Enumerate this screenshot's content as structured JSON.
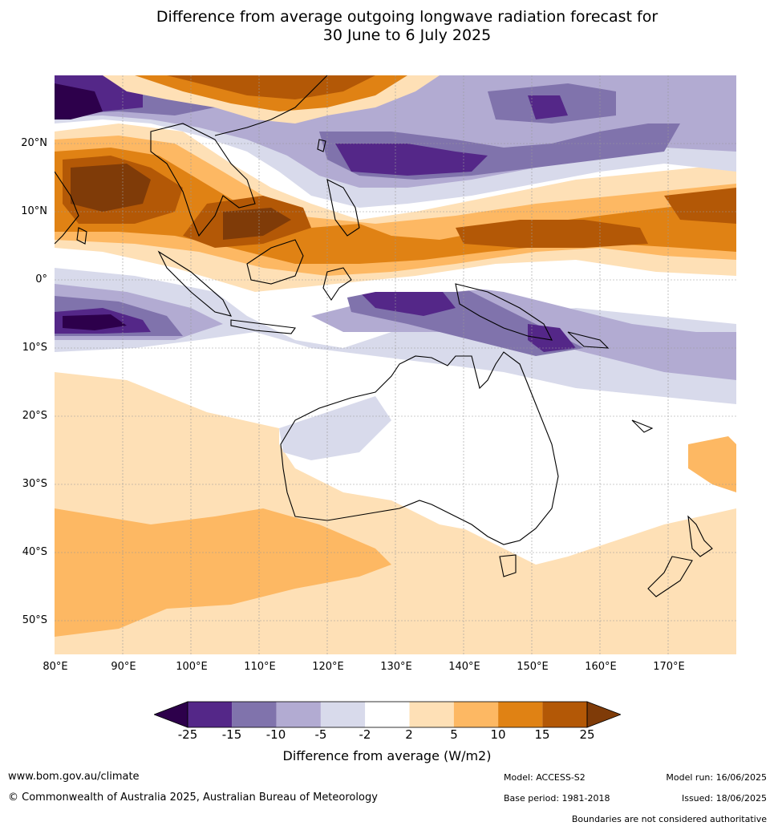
{
  "title": {
    "line1": "Difference from average outgoing longwave radiation forecast for",
    "line2": "30 June to 6 July 2025"
  },
  "lat_labels": [
    "20°N",
    "10°N",
    "0°",
    "10°S",
    "20°S",
    "30°S",
    "40°S",
    "50°S"
  ],
  "lon_labels": [
    "80°E",
    "90°E",
    "100°E",
    "110°E",
    "120°E",
    "130°E",
    "140°E",
    "150°E",
    "160°E",
    "170°E"
  ],
  "colorbar": {
    "title": "Difference from average (W/m2)",
    "ticks": [
      "-25",
      "-15",
      "-10",
      "-5",
      "-2",
      "2",
      "5",
      "10",
      "15",
      "25"
    ],
    "colors": {
      "lt_-25": "#2d004b",
      "-25_-15": "#542788",
      "-15_-10": "#8073ac",
      "-10_-5": "#b2abd2",
      "-5_-2": "#d8daeb",
      "-2_2": "#ffffff",
      "2_5": "#fee0b6",
      "5_10": "#fdb863",
      "10_15": "#e08214",
      "15_25": "#b35806",
      "gt_25": "#7f3b08"
    }
  },
  "footer": {
    "website": "www.bom.gov.au/climate",
    "copyright": "© Commonwealth of Australia 2025, Australian Bureau of Meteorology",
    "model": "Model: ACCESS-S2",
    "base_period": "Base period: 1981-2018",
    "model_run": "Model run: 16/06/2025",
    "issued": "Issued: 18/06/2025",
    "boundaries_note": "Boundaries are not considered authoritative"
  }
}
